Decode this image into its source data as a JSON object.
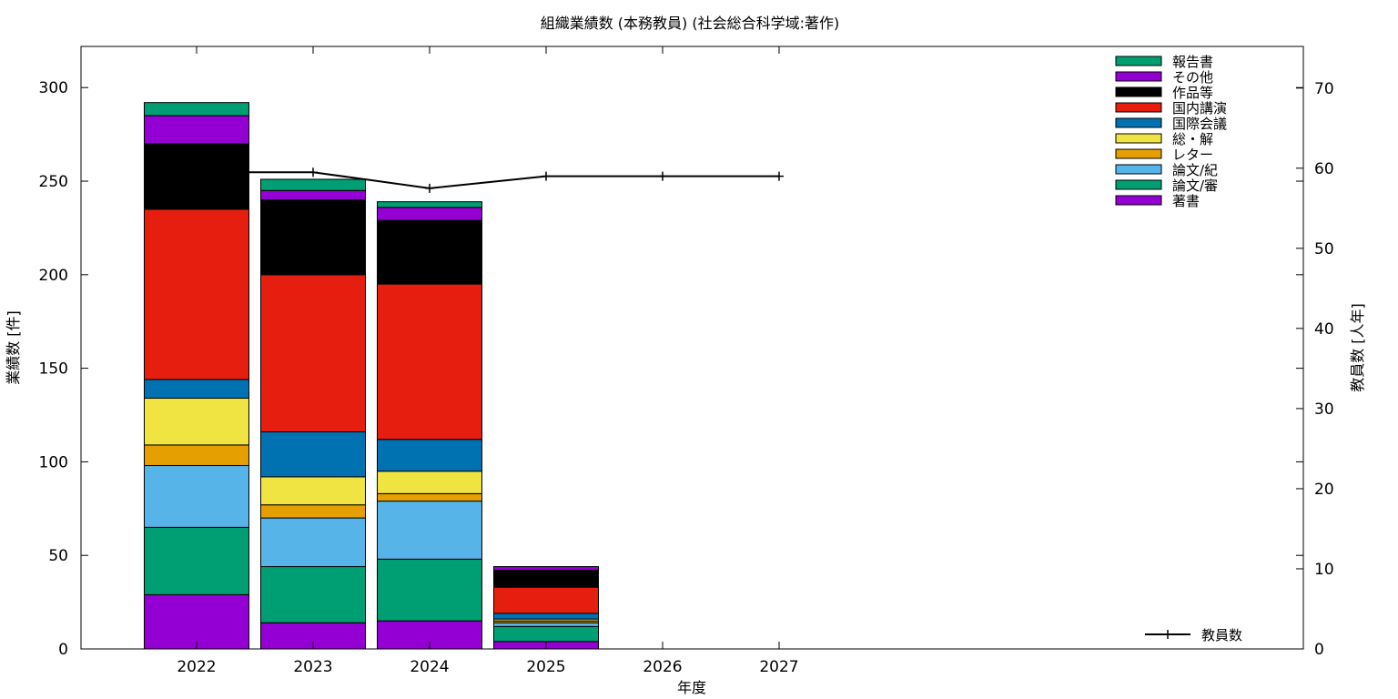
{
  "chart_data": {
    "type": "bar",
    "stacked": true,
    "title": "組織業績数 (本務教員) (社会総合科学域:著作)",
    "xlabel": "年度",
    "ylabel": "業績数 [件]",
    "y2label": "教員数 [人年]",
    "categories": [
      "2022",
      "2023",
      "2024",
      "2025",
      "2026",
      "2027"
    ],
    "ylim": [
      0,
      322
    ],
    "y2lim": [
      0,
      75.2
    ],
    "yticks": [
      0,
      50,
      100,
      150,
      200,
      250,
      300
    ],
    "y2ticks": [
      0,
      10,
      20,
      30,
      40,
      50,
      60,
      70
    ],
    "grid": false,
    "legend_position": "top-right",
    "series": [
      {
        "name": "著書",
        "color": "#9400d3",
        "values": [
          29,
          14,
          15,
          4,
          0,
          0
        ]
      },
      {
        "name": "論文/審",
        "color": "#009e73",
        "values": [
          36,
          30,
          33,
          8,
          0,
          0
        ]
      },
      {
        "name": "論文/紀",
        "color": "#56b4e9",
        "values": [
          33,
          26,
          31,
          2,
          0,
          0
        ]
      },
      {
        "name": "レター",
        "color": "#e69f00",
        "values": [
          11,
          7,
          4,
          1,
          0,
          0
        ]
      },
      {
        "name": "総・解",
        "color": "#f0e442",
        "values": [
          25,
          15,
          12,
          1,
          0,
          0
        ]
      },
      {
        "name": "国際会議",
        "color": "#0072b2",
        "values": [
          10,
          24,
          17,
          3,
          0,
          0
        ]
      },
      {
        "name": "国内講演",
        "color": "#e51e10",
        "values": [
          91,
          84,
          83,
          14,
          0,
          0
        ]
      },
      {
        "name": "作品等",
        "color": "#000000",
        "values": [
          35,
          40,
          34,
          9,
          0,
          0
        ]
      },
      {
        "name": "その他",
        "color": "#9400d3",
        "values": [
          15,
          5,
          7,
          2,
          0,
          0
        ]
      },
      {
        "name": "報告書",
        "color": "#009e73",
        "values": [
          7,
          6,
          3,
          0,
          0,
          0
        ]
      }
    ],
    "line_series": {
      "name": "教員数",
      "color": "#000000",
      "axis": "y2",
      "x": [
        "2022",
        "2023",
        "2024",
        "2025",
        "2026",
        "2027"
      ],
      "values": [
        59.5,
        59.5,
        57.5,
        59.0,
        59.0,
        59.0
      ]
    }
  }
}
